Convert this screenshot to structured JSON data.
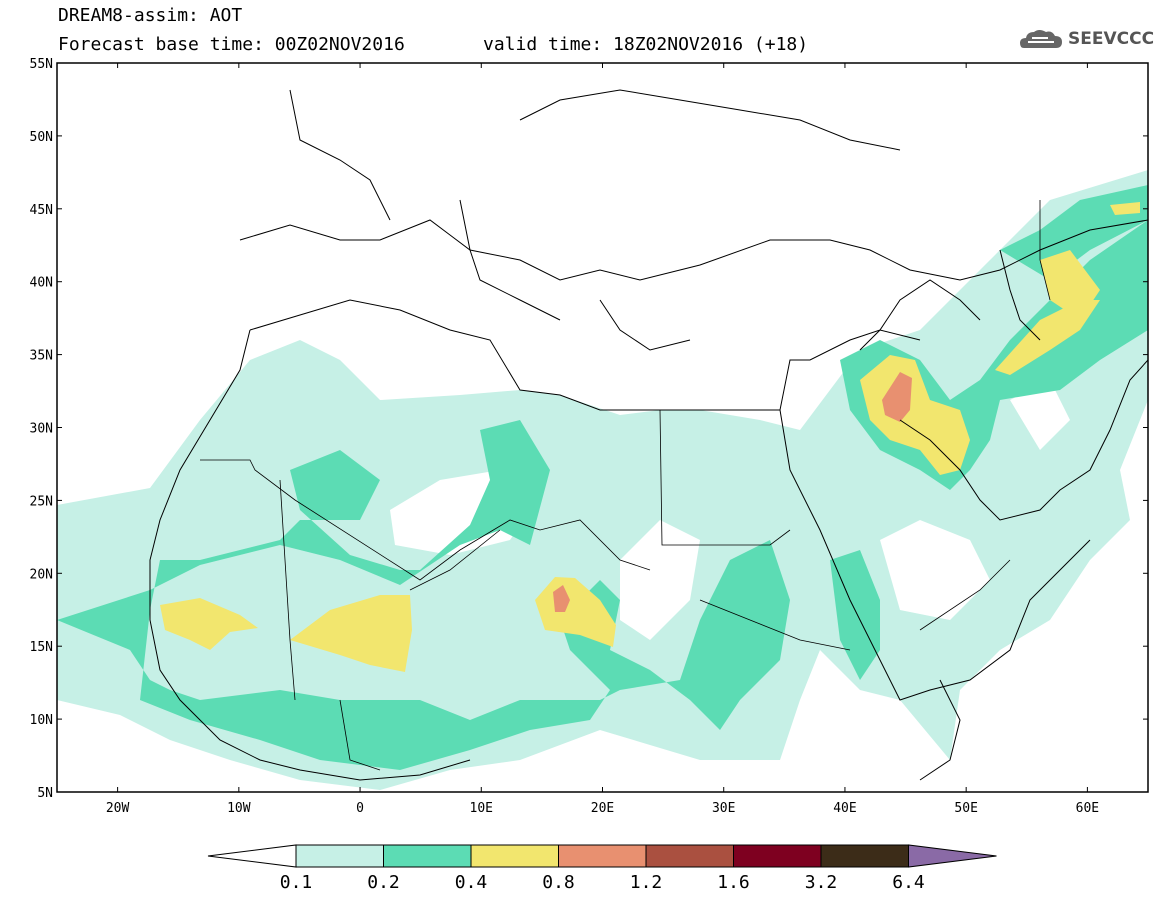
{
  "header": {
    "title": "DREAM8-assim: AOT",
    "base_time": "Forecast base time: 00Z02NOV2016",
    "valid_time": "valid time: 18Z02NOV2016 (+18)"
  },
  "logo": {
    "text": "SEEVCCC",
    "icon": "cloud-icon"
  },
  "map": {
    "lat_labels": [
      "55N",
      "50N",
      "45N",
      "40N",
      "35N",
      "30N",
      "25N",
      "20N",
      "15N",
      "10N",
      "5N"
    ],
    "lon_labels": [
      "20W",
      "10W",
      "0",
      "10E",
      "20E",
      "30E",
      "40E",
      "50E",
      "60E"
    ],
    "lon_range": [
      -25,
      65
    ],
    "lat_range": [
      5,
      55
    ]
  },
  "colorbar": {
    "ticks": [
      "0.1",
      "0.2",
      "0.4",
      "0.8",
      "1.2",
      "1.6",
      "3.2",
      "6.4"
    ],
    "colors": [
      "#ffffff",
      "#c6f0e6",
      "#5cdcb4",
      "#f2e66e",
      "#e89070",
      "#aa5040",
      "#7e0020",
      "#3c2c18",
      "#8a6aa6"
    ]
  }
}
